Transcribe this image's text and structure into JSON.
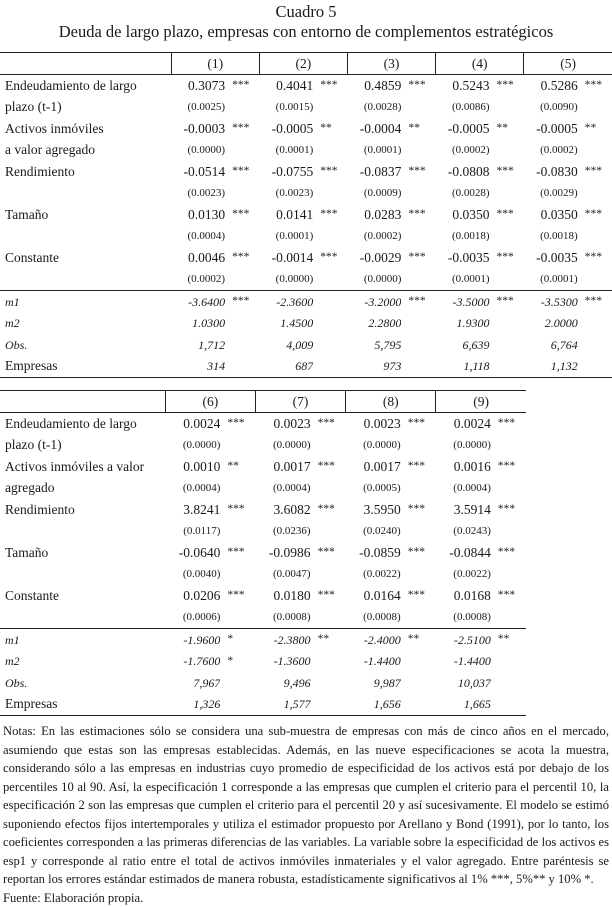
{
  "title": "Cuadro 5",
  "subtitle": "Deuda de largo plazo, empresas con entorno de complementos estratégicos",
  "tables": [
    {
      "columns": [
        "(1)",
        "(2)",
        "(3)",
        "(4)",
        "(5)"
      ],
      "rows": [
        {
          "kind": "coef",
          "label": "Endeudamiento de largo",
          "values": [
            "0.3073",
            "0.4041",
            "0.4859",
            "0.5243",
            "0.5286"
          ],
          "stars": [
            "***",
            "***",
            "***",
            "***",
            "***"
          ]
        },
        {
          "kind": "se",
          "label": "plazo (t-1)",
          "values": [
            "(0.0025)",
            "(0.0015)",
            "(0.0028)",
            "(0.0086)",
            "(0.0090)"
          ],
          "stars": [
            "",
            "",
            "",
            "",
            ""
          ]
        },
        {
          "kind": "coef",
          "label": "Activos inmóviles",
          "values": [
            "-0.0003",
            "-0.0005",
            "-0.0004",
            "-0.0005",
            "-0.0005"
          ],
          "stars": [
            "***",
            "**",
            "**",
            "**",
            "**"
          ]
        },
        {
          "kind": "se",
          "label": "a valor agregado",
          "values": [
            "(0.0000)",
            "(0.0001)",
            "(0.0001)",
            "(0.0002)",
            "(0.0002)"
          ],
          "stars": [
            "",
            "",
            "",
            "",
            ""
          ]
        },
        {
          "kind": "coef",
          "label": "Rendimiento",
          "values": [
            "-0.0514",
            "-0.0755",
            "-0.0837",
            "-0.0808",
            "-0.0830"
          ],
          "stars": [
            "***",
            "***",
            "***",
            "***",
            "***"
          ]
        },
        {
          "kind": "se",
          "label": "",
          "values": [
            "(0.0023)",
            "(0.0023)",
            "(0.0009)",
            "(0.0028)",
            "(0.0029)"
          ],
          "stars": [
            "",
            "",
            "",
            "",
            ""
          ]
        },
        {
          "kind": "coef",
          "label": "Tamaño",
          "values": [
            "0.0130",
            "0.0141",
            "0.0283",
            "0.0350",
            "0.0350"
          ],
          "stars": [
            "***",
            "***",
            "***",
            "***",
            "***"
          ]
        },
        {
          "kind": "se",
          "label": "",
          "values": [
            "(0.0004)",
            "(0.0001)",
            "(0.0002)",
            "(0.0018)",
            "(0.0018)"
          ],
          "stars": [
            "",
            "",
            "",
            "",
            ""
          ]
        },
        {
          "kind": "coef",
          "label": "Constante",
          "values": [
            "0.0046",
            "-0.0014",
            "-0.0029",
            "-0.0035",
            "-0.0035"
          ],
          "stars": [
            "***",
            "***",
            "***",
            "***",
            "***"
          ]
        },
        {
          "kind": "se",
          "label": "",
          "values": [
            "(0.0002)",
            "(0.0000)",
            "(0.0000)",
            "(0.0001)",
            "(0.0001)"
          ],
          "stars": [
            "",
            "",
            "",
            "",
            ""
          ]
        },
        {
          "kind": "stat",
          "italic_label": true,
          "sep": true,
          "label": "m1",
          "values": [
            "-3.6400",
            "-2.3600",
            "-3.2000",
            "-3.5000",
            "-3.5300"
          ],
          "stars": [
            "***",
            "",
            "***",
            "***",
            "***"
          ]
        },
        {
          "kind": "stat",
          "italic_label": true,
          "label": "m2",
          "values": [
            "1.0300",
            "1.4500",
            "2.2800",
            "1.9300",
            "2.0000"
          ],
          "stars": [
            "",
            "",
            "",
            "",
            ""
          ]
        },
        {
          "kind": "stat",
          "italic_label": true,
          "label": "Obs.",
          "values": [
            "1,712",
            "4,009",
            "5,795",
            "6,639",
            "6,764"
          ],
          "stars": [
            "",
            "",
            "",
            "",
            ""
          ]
        },
        {
          "kind": "stat",
          "italic_label": false,
          "last": true,
          "label": "Empresas",
          "values": [
            "314",
            "687",
            "973",
            "1,118",
            "1,132"
          ],
          "stars": [
            "",
            "",
            "",
            "",
            ""
          ]
        }
      ]
    },
    {
      "columns": [
        "(6)",
        "(7)",
        "(8)",
        "(9)"
      ],
      "rows": [
        {
          "kind": "coef",
          "label": "Endeudamiento de largo",
          "values": [
            "0.0024",
            "0.0023",
            "0.0023",
            "0.0024"
          ],
          "stars": [
            "***",
            "***",
            "***",
            "***"
          ]
        },
        {
          "kind": "se",
          "label": "plazo (t-1)",
          "values": [
            "(0.0000)",
            "(0.0000)",
            "(0.0000)",
            "(0.0000)"
          ],
          "stars": [
            "",
            "",
            "",
            ""
          ]
        },
        {
          "kind": "coef",
          "label": "Activos inmóviles a valor",
          "values": [
            "0.0010",
            "0.0017",
            "0.0017",
            "0.0016"
          ],
          "stars": [
            "**",
            "***",
            "***",
            "***"
          ]
        },
        {
          "kind": "se",
          "label": "agregado",
          "values": [
            "(0.0004)",
            "(0.0004)",
            "(0.0005)",
            "(0.0004)"
          ],
          "stars": [
            "",
            "",
            "",
            ""
          ]
        },
        {
          "kind": "coef",
          "label": "Rendimiento",
          "values": [
            "3.8241",
            "3.6082",
            "3.5950",
            "3.5914"
          ],
          "stars": [
            "***",
            "***",
            "***",
            "***"
          ]
        },
        {
          "kind": "se",
          "label": "",
          "values": [
            "(0.0117)",
            "(0.0236)",
            "(0.0240)",
            "(0.0243)"
          ],
          "stars": [
            "",
            "",
            "",
            ""
          ]
        },
        {
          "kind": "coef",
          "label": "Tamaño",
          "values": [
            "-0.0640",
            "-0.0986",
            "-0.0859",
            "-0.0844"
          ],
          "stars": [
            "***",
            "***",
            "***",
            "***"
          ]
        },
        {
          "kind": "se",
          "label": "",
          "values": [
            "(0.0040)",
            "(0.0047)",
            "(0.0022)",
            "(0.0022)"
          ],
          "stars": [
            "",
            "",
            "",
            ""
          ]
        },
        {
          "kind": "coef",
          "label": "Constante",
          "values": [
            "0.0206",
            "0.0180",
            "0.0164",
            "0.0168"
          ],
          "stars": [
            "***",
            "***",
            "***",
            "***"
          ]
        },
        {
          "kind": "se",
          "label": "",
          "values": [
            "(0.0006)",
            "(0.0008)",
            "(0.0008)",
            "(0.0008)"
          ],
          "stars": [
            "",
            "",
            "",
            ""
          ]
        },
        {
          "kind": "stat",
          "italic_label": true,
          "sep": true,
          "label": "m1",
          "values": [
            "-1.9600",
            "-2.3800",
            "-2.4000",
            "-2.5100"
          ],
          "stars": [
            "*",
            "**",
            "**",
            "**"
          ]
        },
        {
          "kind": "stat",
          "italic_label": true,
          "label": "m2",
          "values": [
            "-1.7600",
            "-1.3600",
            "-1.4400",
            "-1.4400"
          ],
          "stars": [
            "*",
            "",
            "",
            ""
          ]
        },
        {
          "kind": "stat",
          "italic_label": true,
          "label": "Obs.",
          "values": [
            "7,967",
            "9,496",
            "9,987",
            "10,037"
          ],
          "stars": [
            "",
            "",
            "",
            ""
          ]
        },
        {
          "kind": "stat",
          "italic_label": false,
          "last": true,
          "label": "Empresas",
          "values": [
            "1,326",
            "1,577",
            "1,656",
            "1,665"
          ],
          "stars": [
            "",
            "",
            "",
            ""
          ]
        }
      ]
    }
  ],
  "notes": "Notas: En las estimaciones sólo se considera una sub-muestra de empresas con más de cinco años en el mercado, asumiendo que estas son las empresas establecidas. Además, en las nueve especificaciones se acota la muestra, considerando sólo a las empresas en industrias cuyo promedio de especificidad de los activos está por debajo de los percentiles 10 al 90. Así, la especificación 1 corresponde a las empresas que cumplen el criterio para el percentil 10, la especificación 2 son las empresas que cumplen el criterio para el percentil 20 y así sucesivamente. El modelo se estimó suponiendo efectos fijos intertemporales y utiliza el estimador propuesto por Arellano y Bond (1991), por lo tanto, los coeficientes corresponden a las primeras diferencias de las variables. La variable sobre la especificidad de los activos es esp1 y corresponde al ratio entre el total de activos inmóviles inmateriales y el valor agregado. Entre paréntesis se reportan los errores estándar estimados de manera robusta, estadísticamente significativos al 1% ***, 5%** y 10% *.",
  "source": "Fuente: Elaboración propia."
}
